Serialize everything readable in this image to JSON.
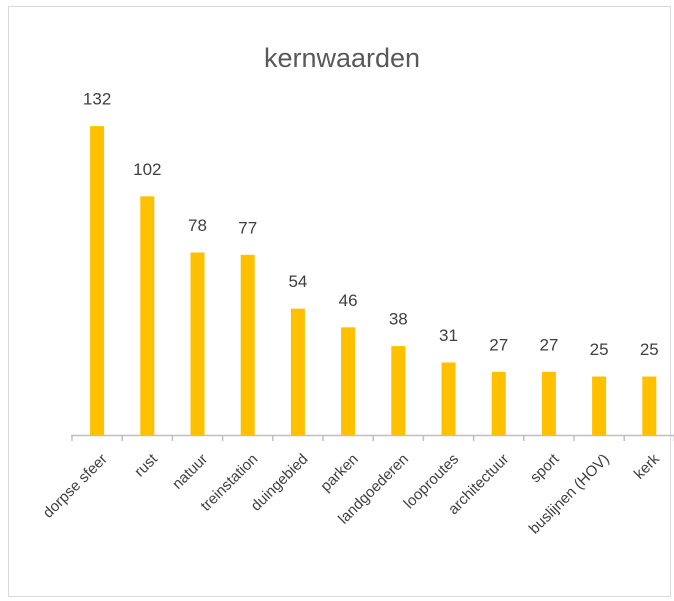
{
  "chart_data": {
    "type": "bar",
    "title": "kernwaarden",
    "categories": [
      "dorpse sfeer",
      "rust",
      "natuur",
      "treinstation",
      "duingebied",
      "parken",
      "landgoederen",
      "looproutes",
      "architectuur",
      "sport",
      "buslijnen (HOV)",
      "kerk"
    ],
    "values": [
      132,
      102,
      78,
      77,
      54,
      46,
      38,
      31,
      27,
      27,
      25,
      25
    ],
    "color": "#ffc000"
  }
}
